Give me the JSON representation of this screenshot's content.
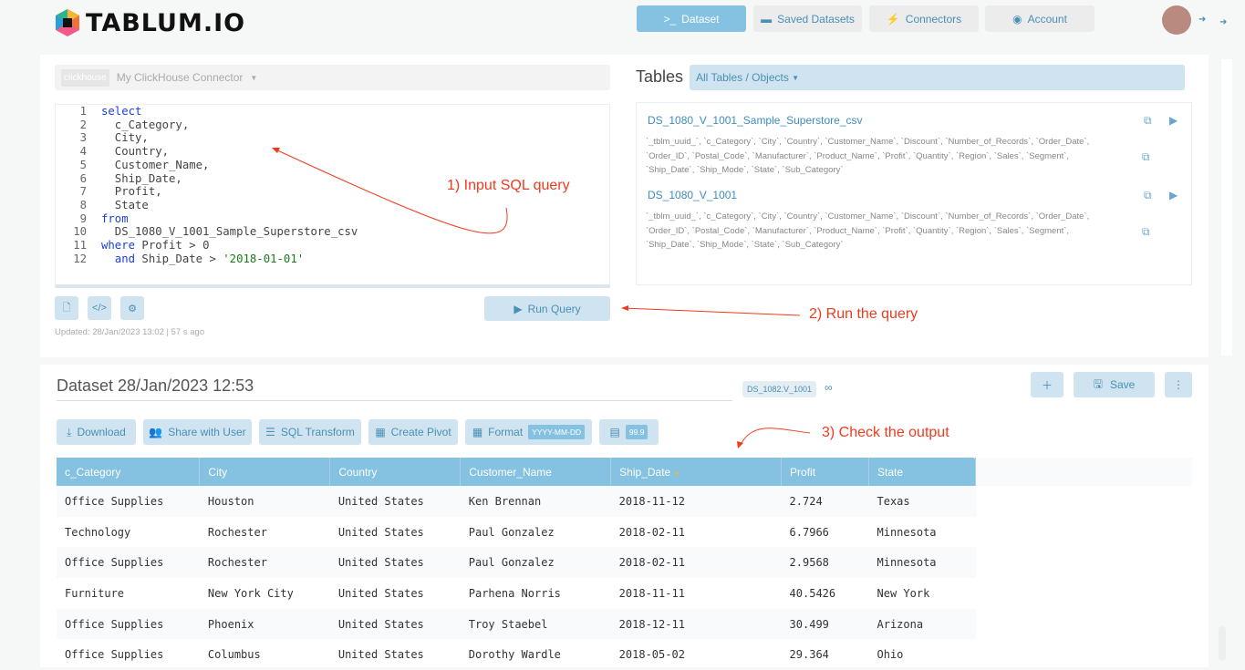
{
  "app": {
    "logo_text": "TABLUM.IO"
  },
  "nav": [
    {
      "label": "Dataset",
      "icon": "terminal-icon"
    },
    {
      "label": "Saved Datasets",
      "icon": "archive-icon"
    },
    {
      "label": "Connectors",
      "icon": "plug-icon"
    },
    {
      "label": "Account",
      "icon": "user-circle-icon"
    }
  ],
  "query": {
    "connector_badge": "clickhouse",
    "connector": "My ClickHouse Connector",
    "lines": [
      "select",
      "  c_Category,",
      "  City,",
      "  Country,",
      "  Customer_Name,",
      "  Ship_Date,",
      "  Profit,",
      "  State",
      "from",
      "  DS_1080_V_1001_Sample_Superstore_csv",
      "where Profit > 0",
      "  and Ship_Date > '2018-01-01'"
    ],
    "run_label": "Run Query",
    "updated": "Updated: 28/Jan/2023 13:02 | 57 s ago"
  },
  "tables": {
    "title": "Tables",
    "filter": "All Tables / Objects",
    "items": [
      {
        "name": "DS_1080_V_1001_Sample_Superstore_csv",
        "columns": "`_tblm_uuid_`, `c_Category`, `City`, `Country`, `Customer_Name`, `Discount`, `Number_of_Records`, `Order_Date`, `Order_ID`, `Postal_Code`, `Manufacturer`, `Product_Name`, `Profit`, `Quantity`, `Region`, `Sales`, `Segment`, `Ship_Date`, `Ship_Mode`, `State`, `Sub_Category`"
      },
      {
        "name": "DS_1080_V_1001",
        "columns": "`_tblm_uuid_`, `c_Category`, `City`, `Country`, `Customer_Name`, `Discount`, `Number_of_Records`, `Order_Date`, `Order_ID`, `Postal_Code`, `Manufacturer`, `Product_Name`, `Profit`, `Quantity`, `Region`, `Sales`, `Segment`, `Ship_Date`, `Ship_Mode`, `State`, `Sub_Category`"
      }
    ]
  },
  "annotations": {
    "a1": "1) Input SQL query",
    "a2": "2) Run the query",
    "a3": "3) Check the output"
  },
  "dataset": {
    "title": "Dataset 28/Jan/2023 12:53",
    "badge": "DS_1082.V_1001",
    "save_label": "Save",
    "toolbar": {
      "download": "Download",
      "share": "Share with User",
      "sql": "SQL Transform",
      "pivot": "Create Pivot",
      "format": "Format",
      "format_value": "YYYY-MM-DD",
      "number_value": "99.9"
    },
    "columns": [
      "c_Category",
      "City",
      "Country",
      "Customer_Name",
      "Ship_Date",
      "Profit",
      "State"
    ],
    "sorted_column": "Ship_Date",
    "rows": [
      [
        "Office Supplies",
        "Houston",
        "United States",
        "Ken Brennan",
        "2018-11-12",
        "2.724",
        "Texas"
      ],
      [
        "Technology",
        "Rochester",
        "United States",
        "Paul Gonzalez",
        "2018-02-11",
        "6.7966",
        "Minnesota"
      ],
      [
        "Office Supplies",
        "Rochester",
        "United States",
        "Paul Gonzalez",
        "2018-02-11",
        "2.9568",
        "Minnesota"
      ],
      [
        "Furniture",
        "New York City",
        "United States",
        "Parhena Norris",
        "2018-11-11",
        "40.5426",
        "New York"
      ],
      [
        "Office Supplies",
        "Phoenix",
        "United States",
        "Troy Staebel",
        "2018-12-11",
        "30.499",
        "Arizona"
      ],
      [
        "Office Supplies",
        "Columbus",
        "United States",
        "Dorothy Wardle",
        "2018-05-02",
        "29.364",
        "Ohio"
      ]
    ]
  }
}
